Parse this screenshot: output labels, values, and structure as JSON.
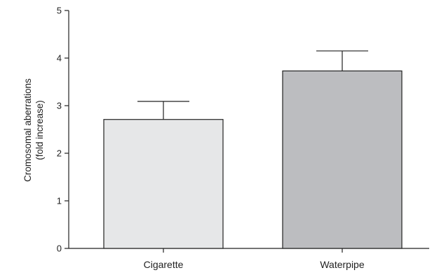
{
  "chart_data": {
    "type": "bar",
    "categories": [
      "Cigarette",
      "Waterpipe"
    ],
    "values": [
      2.71,
      3.73
    ],
    "errors": [
      0.38,
      0.42
    ],
    "ylabel_lines": [
      "Cromosomal aberrations",
      "(fold increase)"
    ],
    "ylim": [
      0,
      5
    ],
    "yticks": [
      0,
      1,
      2,
      3,
      4,
      5
    ],
    "bar_colors": [
      "#e6e7e8",
      "#bcbdc0"
    ],
    "grid": false
  }
}
